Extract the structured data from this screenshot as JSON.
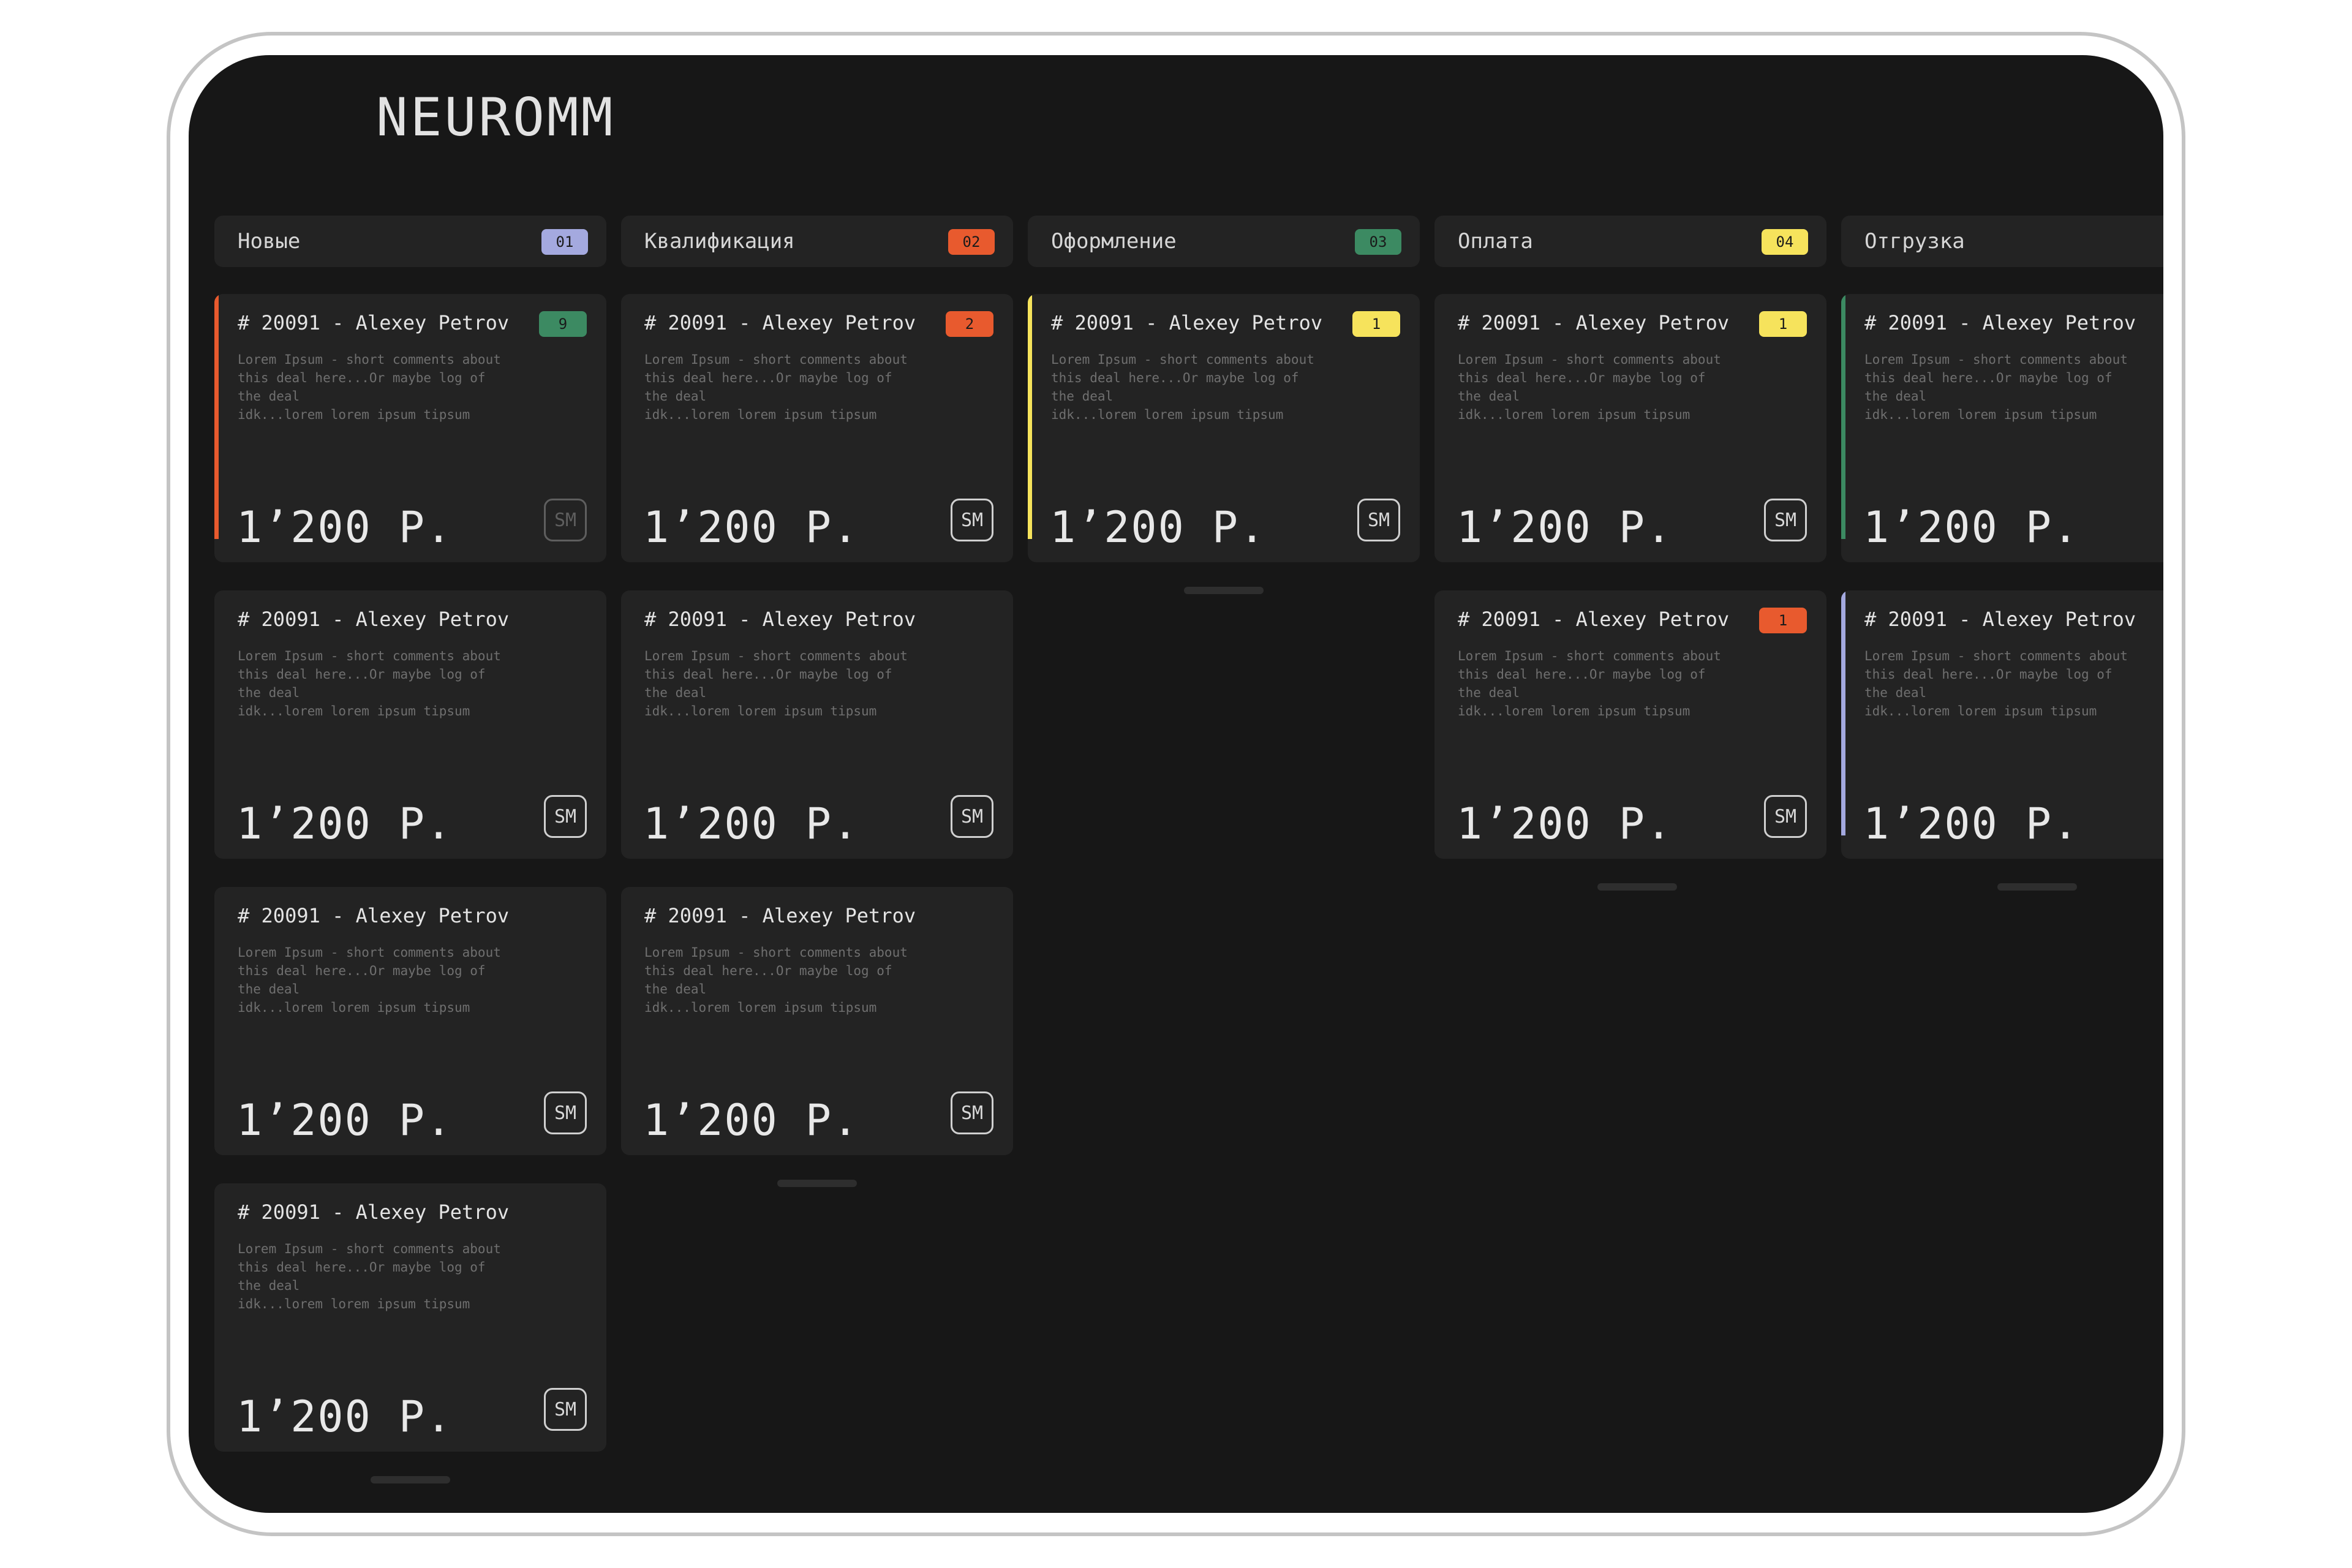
{
  "app": {
    "logo": "NEUROMM"
  },
  "colors": {
    "blue": "#a4a9df",
    "red": "#e85a2e",
    "green": "#3c8a62",
    "yellow": "#f6e35c",
    "orange": "#e85a2e"
  },
  "columns": [
    {
      "title": "Новые",
      "badge": "01",
      "badge_color": "#a4a9df"
    },
    {
      "title": "Квалификация",
      "badge": "02",
      "badge_color": "#e85a2e"
    },
    {
      "title": "Оформление",
      "badge": "03",
      "badge_color": "#3c8a62"
    },
    {
      "title": "Оплата",
      "badge": "04",
      "badge_color": "#f6e35c"
    },
    {
      "title": "Отгрузка",
      "badge": "",
      "badge_color": "#e85a2e"
    }
  ],
  "card": {
    "title": "# 20091 - Alexey Petrov",
    "desc": "Lorem Ipsum - short comments about\nthis  deal  here...Or  maybe  log  of\nthe deal\nidk...lorem lorem ipsum tipsum",
    "price": "1’200 Р.",
    "avatar": "SM"
  },
  "card_badges": {
    "c0_0": "9",
    "c1_0": "2",
    "c2_0": "1",
    "c3_0": "1",
    "c3_1": "1"
  }
}
